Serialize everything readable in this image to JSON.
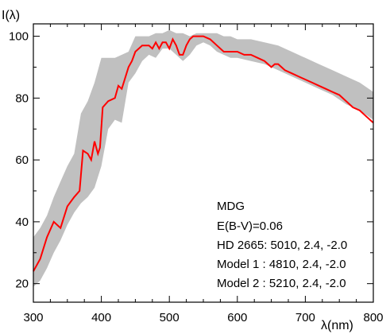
{
  "chart_data": {
    "type": "line",
    "title": "",
    "xlabel": "λ(nm)",
    "ylabel": "I(λ)",
    "xlim": [
      300,
      800
    ],
    "ylim": [
      14,
      104
    ],
    "x_ticks": [
      300,
      400,
      500,
      600,
      700,
      800
    ],
    "y_ticks": [
      20,
      40,
      60,
      80,
      100
    ],
    "grid": false,
    "colors": {
      "line": "#ff0000",
      "band": "#c0c0c0",
      "axes": "#000000"
    },
    "series": [
      {
        "x": [
          300,
          310,
          320,
          330,
          340,
          350,
          360,
          368,
          373,
          380,
          385,
          390,
          395,
          398,
          402,
          410,
          420,
          425,
          430,
          440,
          445,
          450,
          455,
          460,
          470,
          475,
          480,
          485,
          490,
          495,
          500,
          505,
          510,
          515,
          520,
          525,
          530,
          535,
          540,
          550,
          560,
          570,
          580,
          590,
          600,
          610,
          620,
          630,
          640,
          650,
          655,
          660,
          670,
          680,
          690,
          700,
          710,
          720,
          730,
          740,
          750,
          760,
          770,
          780,
          790,
          800
        ],
        "y": [
          24,
          28,
          35,
          40,
          38,
          45,
          48,
          50,
          63,
          62,
          60,
          66,
          62,
          64,
          77,
          79,
          80,
          84,
          83,
          90,
          92,
          95,
          96,
          97,
          97,
          96,
          98,
          96,
          98,
          98,
          96,
          99,
          97,
          94,
          94,
          97,
          99,
          100,
          100,
          100,
          99,
          97,
          95,
          95,
          95,
          94,
          94,
          93,
          92,
          90,
          91,
          91,
          89,
          88,
          87,
          86,
          85,
          84,
          83,
          82,
          81,
          79,
          77,
          76,
          74,
          72
        ]
      },
      {
        "x": [
          300,
          310,
          320,
          330,
          340,
          350,
          360,
          370,
          380,
          390,
          400,
          410,
          420,
          430,
          440,
          450,
          460,
          470,
          480,
          490,
          500,
          510,
          520,
          530,
          540,
          550,
          560,
          570,
          580,
          590,
          600,
          620,
          640,
          660,
          680,
          700,
          720,
          740,
          760,
          780,
          800
        ],
        "y_upper": [
          35,
          38,
          42,
          48,
          53,
          58,
          62,
          75,
          79,
          85,
          93,
          93,
          93,
          94,
          95,
          100,
          100,
          100,
          101,
          101,
          102,
          101,
          101,
          100,
          101,
          101,
          101,
          101,
          100,
          100,
          99,
          99,
          98,
          97,
          95,
          93,
          91,
          89,
          87,
          85,
          82
        ],
        "y_lower": [
          19,
          21,
          25,
          30,
          34,
          39,
          43,
          46,
          48,
          51,
          58,
          70,
          73,
          72,
          85,
          88,
          92,
          94,
          93,
          96,
          96,
          94,
          92,
          94,
          97,
          98,
          97,
          95,
          94,
          93,
          93,
          92,
          91,
          89,
          87,
          85,
          83,
          81,
          78,
          76,
          73
        ]
      }
    ],
    "annotations": [
      "MDG",
      "E(B-V)=0.06",
      "HD 2665: 5010, 2.4, -2.0",
      "Model 1 : 4810, 2.4, -2.0",
      "Model 2 : 5210, 2.4, -2.0"
    ]
  }
}
